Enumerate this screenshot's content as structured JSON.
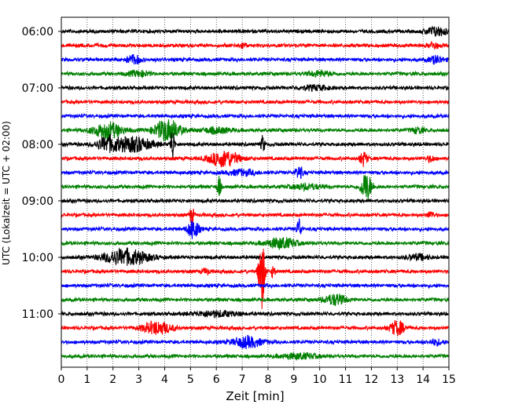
{
  "chart_data": {
    "type": "line",
    "title": "",
    "xlabel": "Zeit  [min]",
    "ylabel": "UTC (Lokalzeit = UTC + 02:00)",
    "xlim": [
      0,
      15
    ],
    "x_ticks": [
      "0",
      "1",
      "2",
      "3",
      "4",
      "5",
      "6",
      "7",
      "8",
      "9",
      "10",
      "11",
      "12",
      "13",
      "14",
      "15"
    ],
    "y_tick_labels": [
      "06:00",
      "07:00",
      "08:00",
      "09:00",
      "10:00",
      "11:00"
    ],
    "grid": "vertical dotted at each minute",
    "color_cycle": [
      "#000000",
      "#ff0000",
      "#0000ff",
      "#008000"
    ],
    "rows": [
      {
        "label": "06:00",
        "color": "#000000",
        "bursts": [
          [
            14.5,
            0.3,
            0.5
          ]
        ]
      },
      {
        "label": "06:15",
        "color": "#ff0000",
        "bursts": [
          [
            7.0,
            0.1,
            0.3
          ],
          [
            14.4,
            0.15,
            0.35
          ]
        ]
      },
      {
        "label": "06:30",
        "color": "#0000ff",
        "bursts": [
          [
            2.8,
            0.2,
            0.5
          ],
          [
            14.5,
            0.2,
            0.4
          ]
        ]
      },
      {
        "label": "06:45",
        "color": "#008000",
        "bursts": [
          [
            3.0,
            0.3,
            0.3
          ],
          [
            10.0,
            0.3,
            0.3
          ]
        ]
      },
      {
        "label": "07:00",
        "color": "#000000",
        "bursts": [
          [
            9.8,
            0.4,
            0.25
          ]
        ]
      },
      {
        "label": "07:15",
        "color": "#ff0000",
        "bursts": []
      },
      {
        "label": "07:30",
        "color": "#0000ff",
        "bursts": []
      },
      {
        "label": "07:45",
        "color": "#008000",
        "bursts": [
          [
            1.8,
            0.4,
            0.9
          ],
          [
            4.1,
            0.35,
            1.2
          ],
          [
            6.0,
            0.4,
            0.3
          ],
          [
            13.8,
            0.15,
            0.35
          ]
        ]
      },
      {
        "label": "08:00",
        "color": "#000000",
        "bursts": [
          [
            1.8,
            0.3,
            0.8
          ],
          [
            2.8,
            0.5,
            0.8
          ],
          [
            4.3,
            0.05,
            2.1
          ],
          [
            7.8,
            0.05,
            1.0
          ]
        ]
      },
      {
        "label": "08:15",
        "color": "#ff0000",
        "bursts": [
          [
            6.3,
            0.4,
            0.9
          ],
          [
            11.7,
            0.1,
            0.8
          ],
          [
            14.3,
            0.1,
            0.35
          ]
        ]
      },
      {
        "label": "08:30",
        "color": "#0000ff",
        "bursts": [
          [
            7.0,
            0.4,
            0.3
          ],
          [
            9.2,
            0.1,
            0.7
          ]
        ]
      },
      {
        "label": "08:45",
        "color": "#008000",
        "bursts": [
          [
            6.1,
            0.05,
            1.3
          ],
          [
            11.8,
            0.15,
            1.6
          ],
          [
            9.5,
            0.4,
            0.3
          ]
        ]
      },
      {
        "label": "09:00",
        "color": "#000000",
        "bursts": []
      },
      {
        "label": "09:15",
        "color": "#ff0000",
        "bursts": [
          [
            5.05,
            0.05,
            1.3
          ],
          [
            14.3,
            0.1,
            0.35
          ]
        ]
      },
      {
        "label": "09:30",
        "color": "#0000ff",
        "bursts": [
          [
            5.1,
            0.15,
            1.1
          ],
          [
            9.2,
            0.06,
            1.2
          ]
        ]
      },
      {
        "label": "09:45",
        "color": "#008000",
        "bursts": [
          [
            8.5,
            0.4,
            0.6
          ]
        ]
      },
      {
        "label": "10:00",
        "color": "#000000",
        "bursts": [
          [
            2.5,
            0.6,
            0.9
          ],
          [
            13.8,
            0.3,
            0.3
          ]
        ]
      },
      {
        "label": "10:15",
        "color": "#ff0000",
        "bursts": [
          [
            7.75,
            0.08,
            4.5
          ],
          [
            8.2,
            0.05,
            0.8
          ],
          [
            5.6,
            0.1,
            0.3
          ]
        ]
      },
      {
        "label": "10:30",
        "color": "#0000ff",
        "bursts": []
      },
      {
        "label": "10:45",
        "color": "#008000",
        "bursts": [
          [
            10.6,
            0.3,
            0.6
          ]
        ]
      },
      {
        "label": "11:00",
        "color": "#000000",
        "bursts": [
          [
            6.0,
            0.6,
            0.3
          ]
        ]
      },
      {
        "label": "11:15",
        "color": "#ff0000",
        "bursts": [
          [
            3.7,
            0.4,
            0.7
          ],
          [
            13.0,
            0.2,
            0.8
          ]
        ]
      },
      {
        "label": "11:30",
        "color": "#0000ff",
        "bursts": [
          [
            7.2,
            0.4,
            0.6
          ],
          [
            14.5,
            0.2,
            0.3
          ]
        ]
      },
      {
        "label": "11:45",
        "color": "#008000",
        "bursts": [
          [
            9.2,
            0.5,
            0.3
          ]
        ]
      }
    ]
  }
}
